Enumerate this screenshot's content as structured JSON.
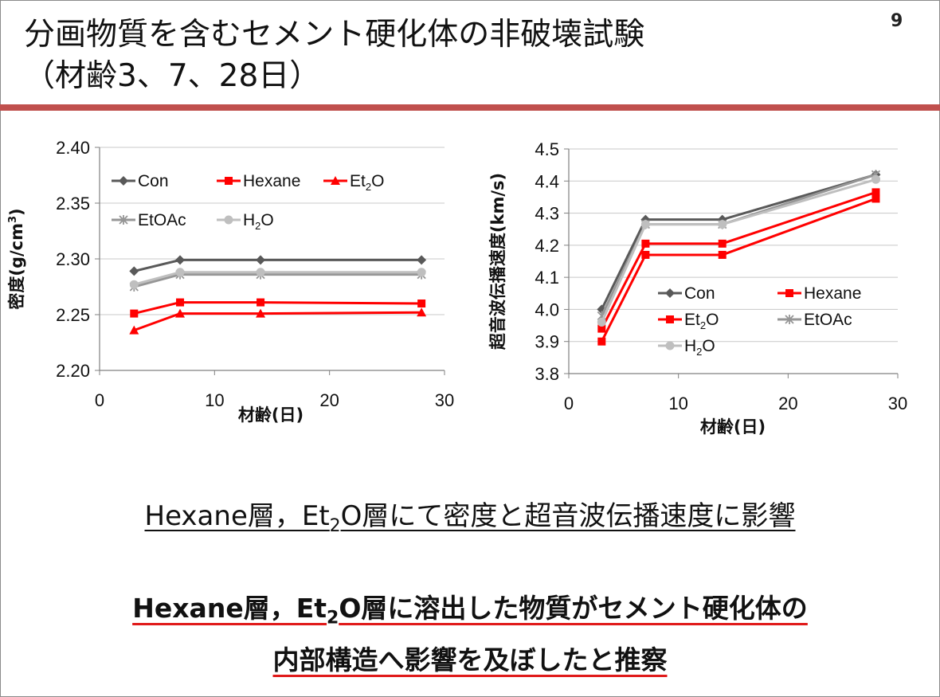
{
  "slide": {
    "title_line1": "分画物質を含むセメント硬化体の非破壊試験",
    "title_line2": "（材齢3、7、28日）",
    "page_number": "9",
    "accent_color": "#c0504d"
  },
  "messages": {
    "line1_pre": "Hexane層，Et",
    "line1_sub": "2",
    "line1_post": "O層にて密度と超音波伝播速度に影響",
    "line2_pre": "Hexane層，Et",
    "line2_sub": "2",
    "line2_post": "O層に溶出した物質がセメント硬化体の",
    "line3": "内部構造へ影響を及ぼしたと推察"
  },
  "chart_data": [
    {
      "type": "line",
      "xlabel": "材齢(日)",
      "ylabel_pre": "密度(g/cm",
      "ylabel_sup": "3",
      "ylabel_post": ")",
      "xlim": [
        0,
        30
      ],
      "ylim": [
        2.2,
        2.4
      ],
      "xticks": [
        "0",
        "10",
        "20",
        "30"
      ],
      "yticks": [
        "2.20",
        "2.25",
        "2.30",
        "2.35",
        "2.40"
      ],
      "grid": true,
      "legend_placement": "top",
      "x": [
        3,
        7,
        14,
        28
      ],
      "series": [
        {
          "name": "Con",
          "values": [
            2.289,
            2.299,
            2.299,
            2.299
          ],
          "color": "#595959",
          "marker": "diamond"
        },
        {
          "name": "Hexane",
          "values": [
            2.251,
            2.261,
            2.261,
            2.26
          ],
          "color": "#ff0000",
          "marker": "square"
        },
        {
          "name": "Et2O",
          "values": [
            2.236,
            2.251,
            2.251,
            2.252
          ],
          "color": "#ff0000",
          "marker": "triangle"
        },
        {
          "name": "EtOAc",
          "values": [
            2.275,
            2.286,
            2.286,
            2.286
          ],
          "color": "#969696",
          "marker": "star"
        },
        {
          "name": "H2O",
          "values": [
            2.277,
            2.288,
            2.288,
            2.288
          ],
          "color": "#bfbfbf",
          "marker": "circle"
        }
      ]
    },
    {
      "type": "line",
      "xlabel": "材齢(日)",
      "ylabel": "超音波伝播速度(km/s)",
      "xlim": [
        0,
        30
      ],
      "ylim": [
        3.8,
        4.5
      ],
      "xticks": [
        "0",
        "10",
        "20",
        "30"
      ],
      "yticks": [
        "3.8",
        "3.9",
        "4.0",
        "4.1",
        "4.2",
        "4.3",
        "4.4",
        "4.5"
      ],
      "grid": true,
      "legend_placement": "bottom-right",
      "x": [
        3,
        7,
        14,
        28
      ],
      "series": [
        {
          "name": "Con",
          "values": [
            4.0,
            4.28,
            4.28,
            4.42
          ],
          "color": "#595959",
          "marker": "diamond"
        },
        {
          "name": "Hexane",
          "values": [
            3.94,
            4.205,
            4.205,
            4.365
          ],
          "color": "#ff0000",
          "marker": "square"
        },
        {
          "name": "Et2O",
          "values": [
            3.9,
            4.17,
            4.17,
            4.345
          ],
          "color": "#ff0000",
          "marker": "square"
        },
        {
          "name": "EtOAc",
          "values": [
            3.98,
            4.265,
            4.265,
            4.42
          ],
          "color": "#969696",
          "marker": "star"
        },
        {
          "name": "H2O",
          "values": [
            3.96,
            4.265,
            4.265,
            4.405
          ],
          "color": "#bfbfbf",
          "marker": "circle"
        }
      ]
    }
  ]
}
